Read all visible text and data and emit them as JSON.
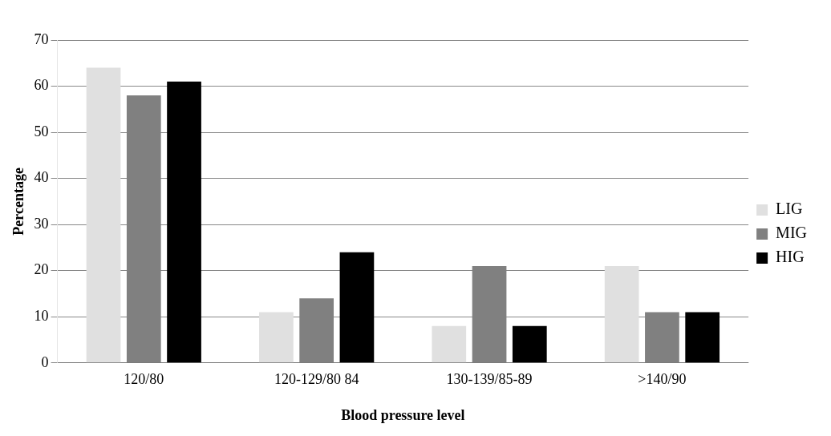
{
  "chart_data": {
    "type": "bar",
    "xlabel": "Blood pressure level",
    "ylabel": "Percentage",
    "categories": [
      "120/80",
      "120-129/80 84",
      "130-139/85-89",
      ">140/90"
    ],
    "series": [
      {
        "name": "LIG",
        "color": "#e0e0e0",
        "values": [
          64,
          11,
          8,
          21
        ]
      },
      {
        "name": "MIG",
        "color": "#808080",
        "values": [
          58,
          14,
          21,
          11
        ]
      },
      {
        "name": "HIG",
        "color": "#000000",
        "values": [
          61,
          24,
          8,
          11
        ]
      }
    ],
    "ylim": [
      0,
      70
    ],
    "yticks": [
      0,
      10,
      20,
      30,
      40,
      50,
      60,
      70
    ],
    "grid": "y",
    "legend": "right"
  }
}
